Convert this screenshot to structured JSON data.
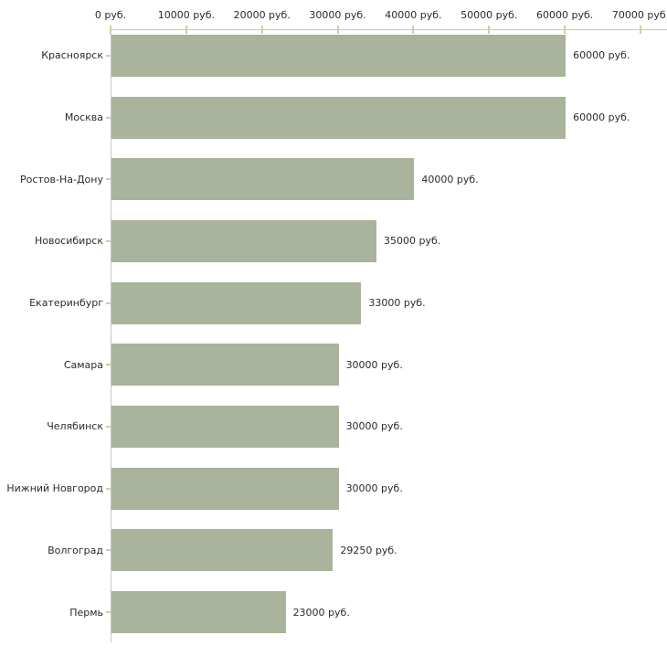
{
  "chart_data": {
    "type": "bar",
    "orientation": "horizontal",
    "title": "",
    "categories": [
      "Красноярск",
      "Москва",
      "Ростов-На-Дону",
      "Новосибирск",
      "Екатеринбург",
      "Самара",
      "Челябинск",
      "Нижний Новгород",
      "Волгоград",
      "Пермь"
    ],
    "values": [
      60000,
      60000,
      40000,
      35000,
      33000,
      30000,
      30000,
      30000,
      29250,
      23000
    ],
    "value_labels": [
      "60000 руб.",
      "60000 руб.",
      "40000 руб.",
      "35000 руб.",
      "33000 руб.",
      "30000 руб.",
      "30000 руб.",
      "30000 руб.",
      "29250 руб.",
      "23000 руб."
    ],
    "x_tick_values": [
      0,
      10000,
      20000,
      30000,
      40000,
      50000,
      60000,
      70000
    ],
    "x_tick_labels": [
      "0 руб.",
      "10000 руб.",
      "20000 руб.",
      "30000 руб.",
      "40000 руб.",
      "50000 руб.",
      "60000 руб.",
      "70000 руб."
    ],
    "xlim": [
      0,
      70000
    ],
    "unit": "руб.",
    "xlabel": "",
    "ylabel": "",
    "grid": false,
    "legend_position": "none"
  },
  "colors": {
    "bar_fill": "#aab39b",
    "axis_line": "#c6c6c6",
    "tick_mark": "#cdcfa8",
    "text": "#2b2b2b",
    "background": "#ffffff"
  }
}
